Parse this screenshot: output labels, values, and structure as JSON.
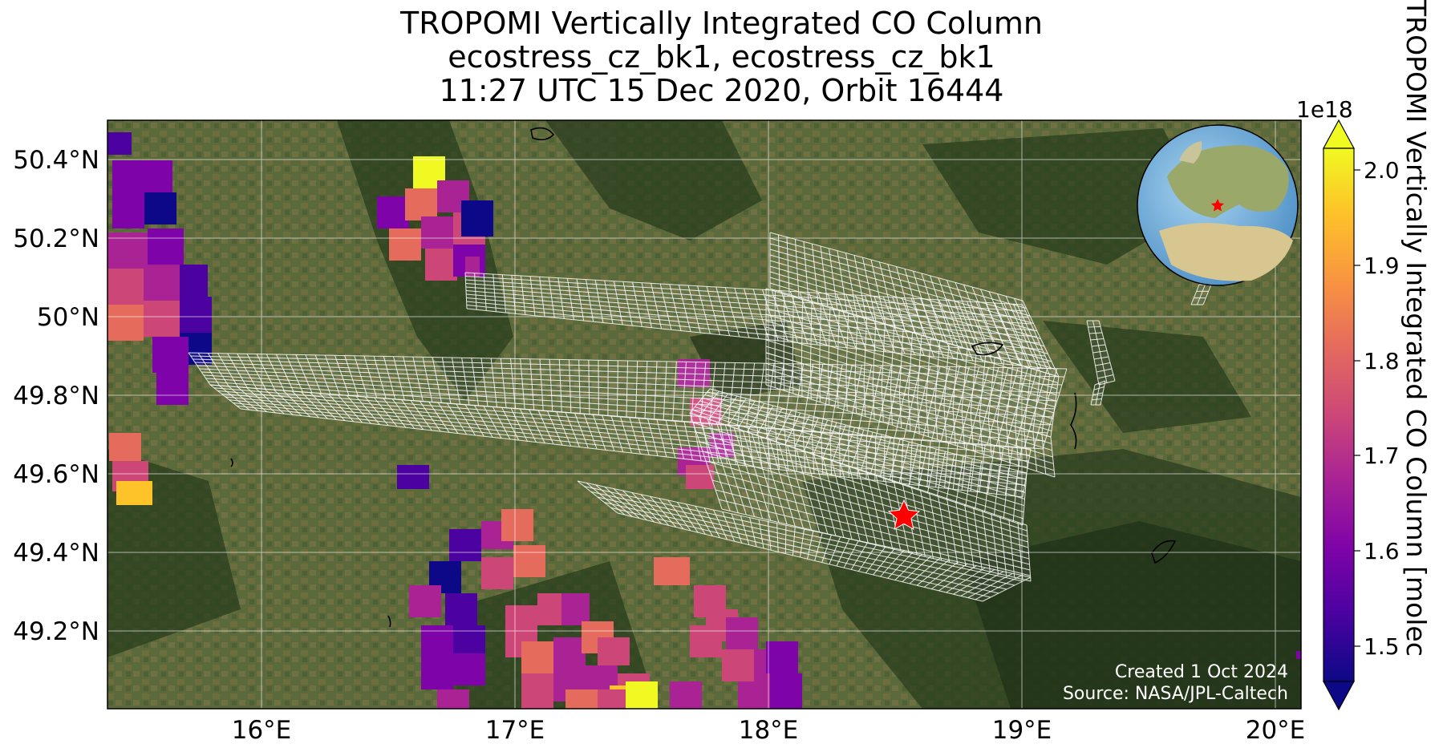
{
  "title": {
    "line1": "TROPOMI Vertically Integrated CO Column",
    "line2": "ecostress_cz_bk1, ecostress_cz_bk1",
    "line3": "11:27 UTC 15 Dec 2020, Orbit 16444"
  },
  "map": {
    "extent": {
      "lon_min": 15.4,
      "lon_max": 20.1,
      "lat_min": 49.0,
      "lat_max": 50.5
    },
    "lat_ticks": [
      "50.4°N",
      "50.2°N",
      "50°N",
      "49.8°N",
      "49.6°N",
      "49.4°N",
      "49.2°N"
    ],
    "lon_ticks": [
      "16°E",
      "17°E",
      "18°E",
      "19°E",
      "20°E"
    ],
    "basemap": "satellite imagery",
    "gridlines": true,
    "site_marker": {
      "lon": 18.53,
      "lat": 49.5,
      "symbol": "red-star"
    },
    "inset": "globe-europe-locator",
    "credit": {
      "created": "Created 1 Oct 2024",
      "source": "Source: NASA/JPL-Caltech"
    }
  },
  "colorbar": {
    "label": "TROPOMI Vertically Integrated CO Column [molec",
    "exponent": "1e18",
    "ticks": [
      "2.0",
      "1.9",
      "1.8",
      "1.7",
      "1.6",
      "1.5"
    ],
    "min": 1.45,
    "max": 2.03,
    "colormap": "plasma",
    "extend": "both"
  },
  "colors": {
    "c1": "#0d0887",
    "c2": "#4c02a1",
    "c3": "#7e03a8",
    "c4": "#a92395",
    "c5": "#cc4778",
    "c6": "#e56b5d",
    "c7": "#f89441",
    "c8": "#fdc328",
    "c9": "#f0f921",
    "footprint_outline": "#ffffff",
    "site_star": "#ff0000"
  }
}
